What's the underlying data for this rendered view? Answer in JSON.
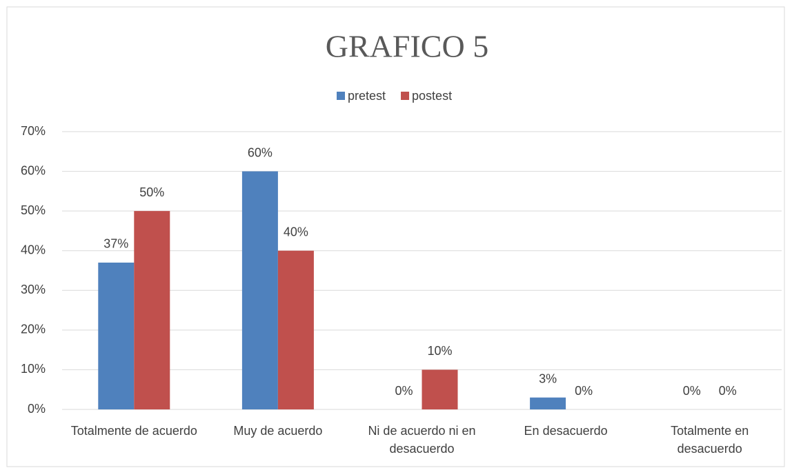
{
  "chart_data": {
    "type": "bar",
    "title": "GRAFICO 5",
    "categories": [
      "Totalmente de acuerdo",
      "Muy de acuerdo",
      "Ni de acuerdo ni en desacuerdo",
      "En desacuerdo",
      "Totalmente en desacuerdo"
    ],
    "series": [
      {
        "name": "pretest",
        "color": "#4f81bd",
        "values": [
          37,
          60,
          0,
          3,
          0
        ],
        "value_labels": [
          "37%",
          "60%",
          "0%",
          "3%",
          "0%"
        ]
      },
      {
        "name": "postest",
        "color": "#c0504d",
        "values": [
          50,
          40,
          10,
          0,
          0
        ],
        "value_labels": [
          "50%",
          "40%",
          "10%",
          "0%",
          "0%"
        ]
      }
    ],
    "ylim": [
      0,
      70
    ],
    "yticks": [
      {
        "value": 0,
        "label": "0%"
      },
      {
        "value": 10,
        "label": "10%"
      },
      {
        "value": 20,
        "label": "20%"
      },
      {
        "value": 30,
        "label": "30%"
      },
      {
        "value": 40,
        "label": "40%"
      },
      {
        "value": 50,
        "label": "50%"
      },
      {
        "value": 60,
        "label": "60%"
      },
      {
        "value": 70,
        "label": "70%"
      }
    ],
    "grid": true,
    "legend": "top"
  }
}
